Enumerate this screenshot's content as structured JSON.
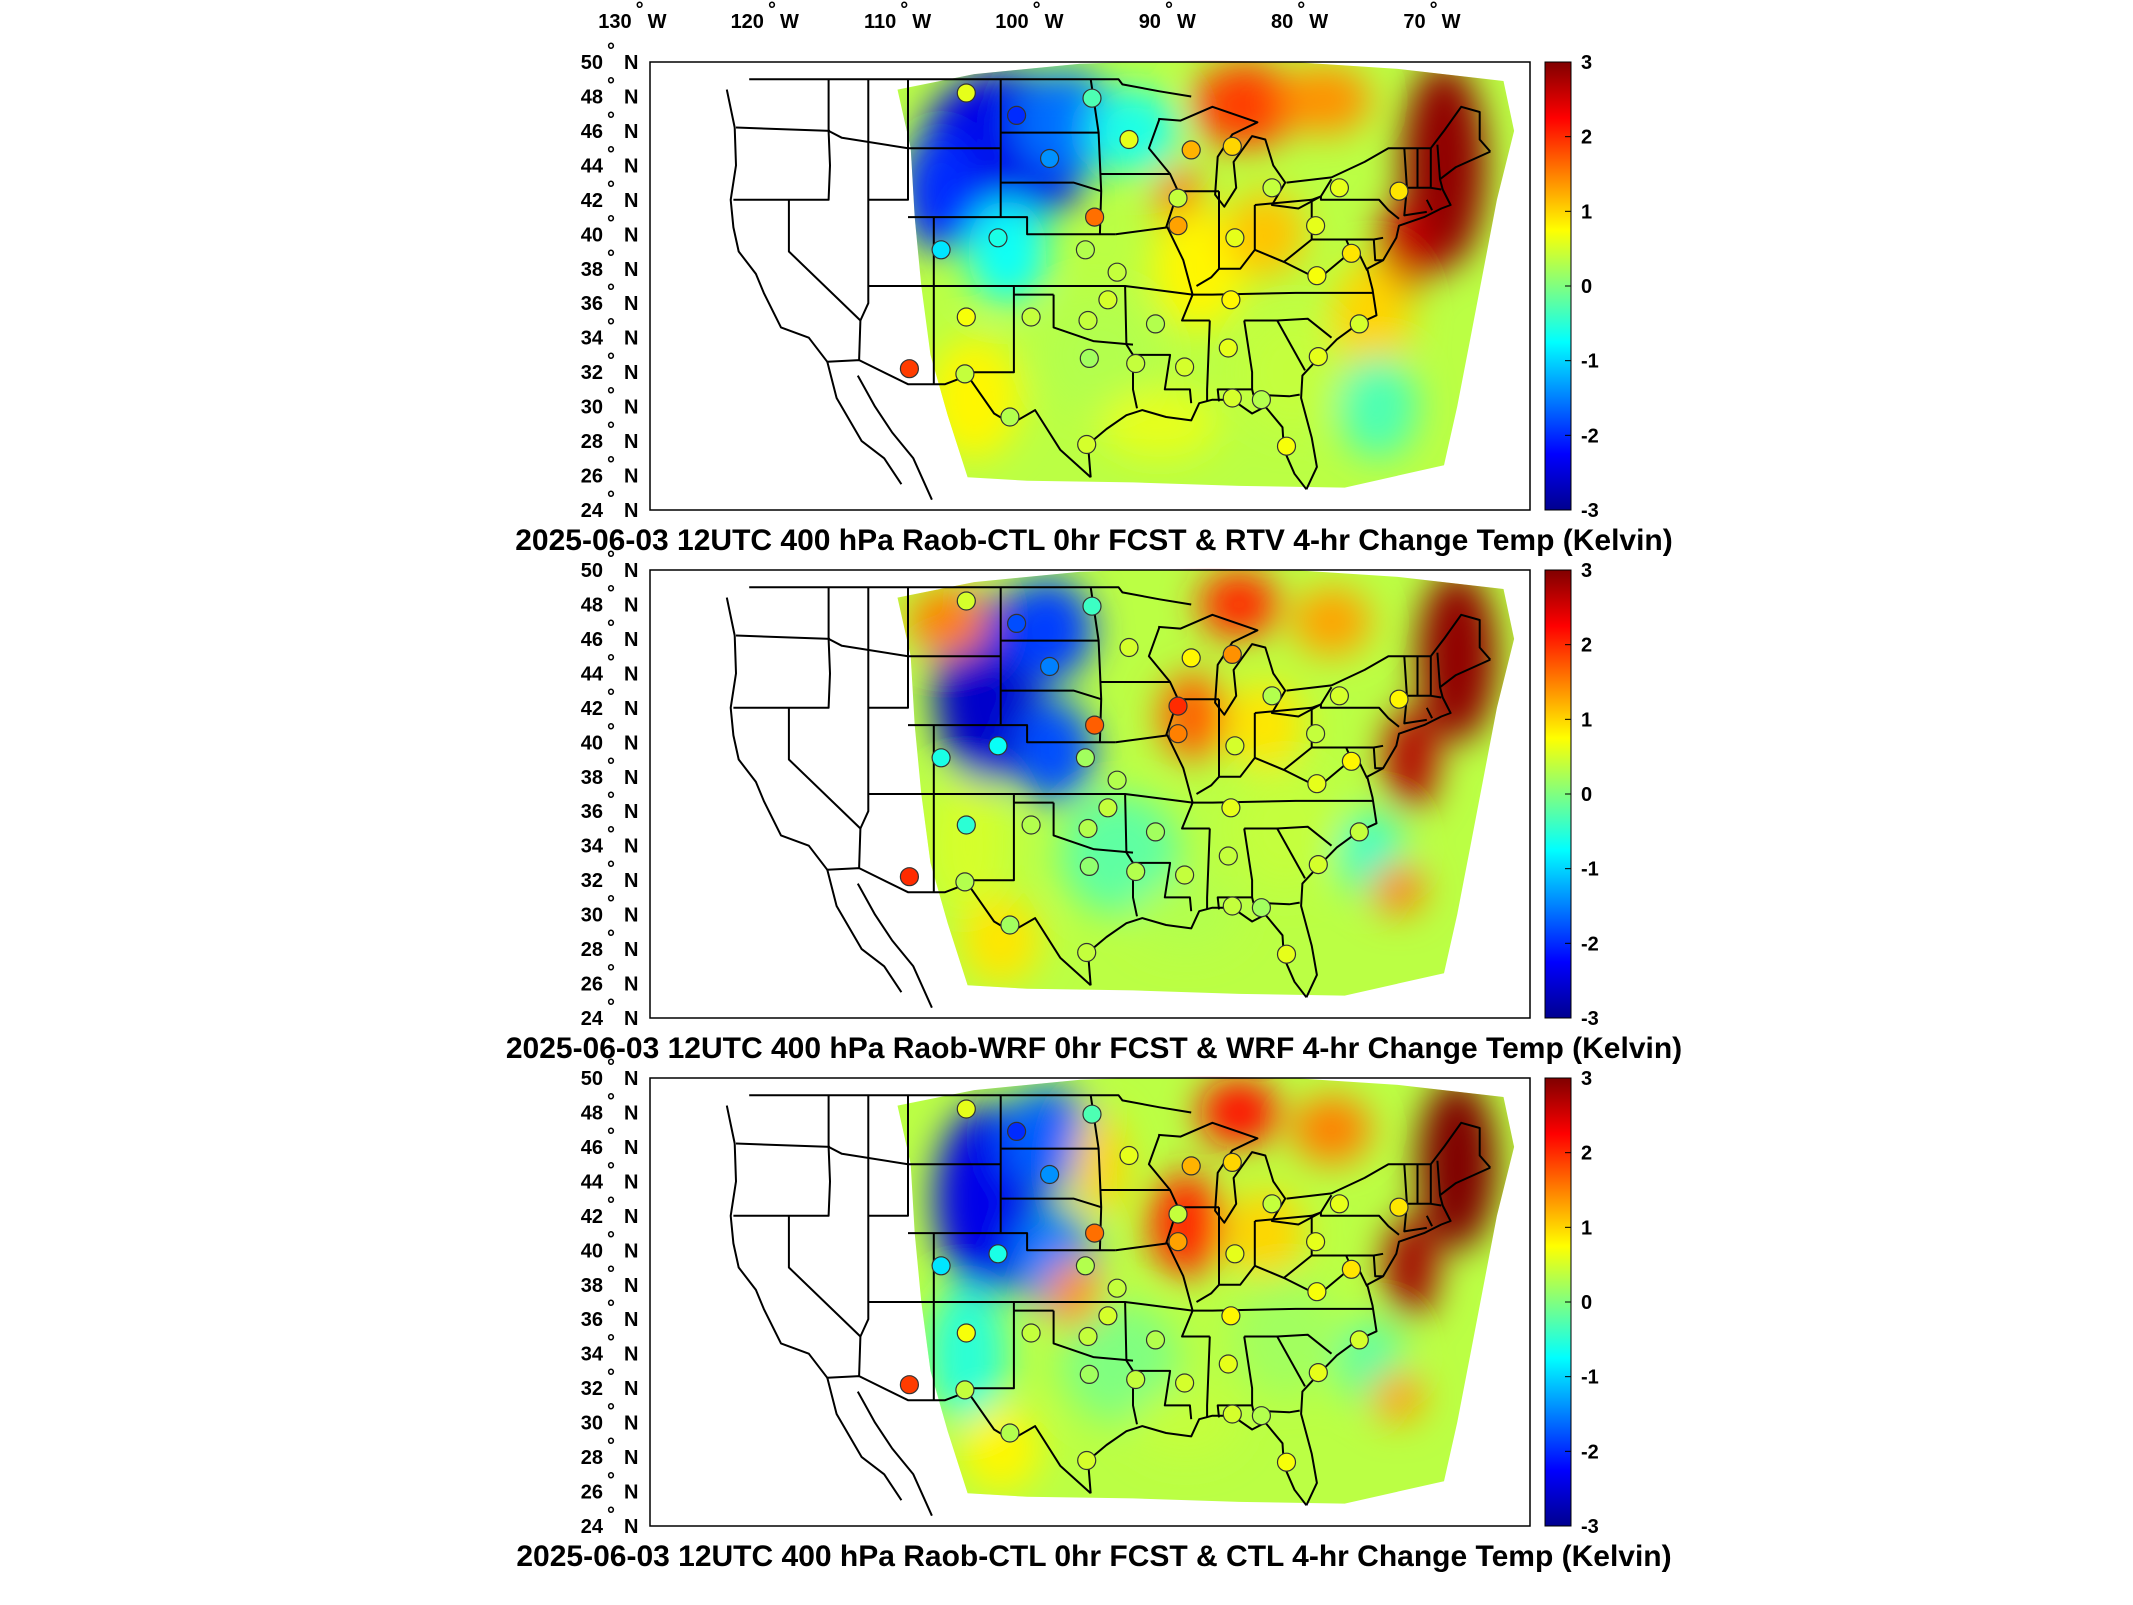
{
  "figure": {
    "lon_ticks": [
      {
        "deg": "130",
        "hemi": "W"
      },
      {
        "deg": "120",
        "hemi": "W"
      },
      {
        "deg": "110",
        "hemi": "W"
      },
      {
        "deg": "100",
        "hemi": "W"
      },
      {
        "deg": "90",
        "hemi": "W"
      },
      {
        "deg": "80",
        "hemi": "W"
      },
      {
        "deg": "70",
        "hemi": "W"
      }
    ],
    "lat_ticks": [
      {
        "deg": "50",
        "hemi": "N"
      },
      {
        "deg": "48",
        "hemi": "N"
      },
      {
        "deg": "46",
        "hemi": "N"
      },
      {
        "deg": "44",
        "hemi": "N"
      },
      {
        "deg": "42",
        "hemi": "N"
      },
      {
        "deg": "40",
        "hemi": "N"
      },
      {
        "deg": "38",
        "hemi": "N"
      },
      {
        "deg": "36",
        "hemi": "N"
      },
      {
        "deg": "34",
        "hemi": "N"
      },
      {
        "deg": "32",
        "hemi": "N"
      },
      {
        "deg": "30",
        "hemi": "N"
      },
      {
        "deg": "28",
        "hemi": "N"
      },
      {
        "deg": "26",
        "hemi": "N"
      },
      {
        "deg": "24",
        "hemi": "N"
      }
    ],
    "colorbar": {
      "min": -3,
      "max": 3,
      "ticks": [
        "3",
        "2",
        "1",
        "0",
        "-1",
        "-2",
        "-3"
      ],
      "colormap": [
        "#00008f",
        "#0000ff",
        "#0080ff",
        "#00ffff",
        "#80ff80",
        "#ffff00",
        "#ff8000",
        "#ff0000",
        "#800000"
      ]
    },
    "panels": [
      {
        "title": "2025-06-03 12UTC 400 hPa Raob-CTL 0hr FCST & RTV 4-hr Change Temp (Kelvin)",
        "stations": [
          {
            "lat": 48.2,
            "lon": -106.6,
            "value": 0.6
          },
          {
            "lat": 47.9,
            "lon": -97.1,
            "value": -0.3
          },
          {
            "lat": 46.9,
            "lon": -102.8,
            "value": -2.0
          },
          {
            "lat": 44.4,
            "lon": -100.3,
            "value": -1.4
          },
          {
            "lat": 42.1,
            "lon": -90.6,
            "value": 0.4
          },
          {
            "lat": 45.5,
            "lon": -94.3,
            "value": 0.6
          },
          {
            "lat": 44.9,
            "lon": -89.6,
            "value": 1.2
          },
          {
            "lat": 45.1,
            "lon": -86.5,
            "value": 1.0
          },
          {
            "lat": 42.7,
            "lon": -83.5,
            "value": 0.4
          },
          {
            "lat": 42.7,
            "lon": -78.4,
            "value": 0.6
          },
          {
            "lat": 42.5,
            "lon": -73.9,
            "value": 0.9
          },
          {
            "lat": 41.0,
            "lon": -96.9,
            "value": 1.6
          },
          {
            "lat": 40.5,
            "lon": -90.6,
            "value": 1.3
          },
          {
            "lat": 39.8,
            "lon": -86.3,
            "value": 0.6
          },
          {
            "lat": 40.5,
            "lon": -80.2,
            "value": 0.6
          },
          {
            "lat": 39.1,
            "lon": -108.5,
            "value": -0.9
          },
          {
            "lat": 39.8,
            "lon": -104.2,
            "value": -0.6
          },
          {
            "lat": 39.1,
            "lon": -97.6,
            "value": 0.3
          },
          {
            "lat": 37.8,
            "lon": -95.2,
            "value": 0.4
          },
          {
            "lat": 38.9,
            "lon": -77.5,
            "value": 0.9
          },
          {
            "lat": 37.6,
            "lon": -80.1,
            "value": 0.7
          },
          {
            "lat": 36.2,
            "lon": -95.9,
            "value": 0.5
          },
          {
            "lat": 36.2,
            "lon": -86.6,
            "value": 0.8
          },
          {
            "lat": 35.2,
            "lon": -101.7,
            "value": 0.4
          },
          {
            "lat": 35.2,
            "lon": -106.6,
            "value": 0.7
          },
          {
            "lat": 35.0,
            "lon": -97.4,
            "value": 0.4
          },
          {
            "lat": 34.8,
            "lon": -92.3,
            "value": 0.3
          },
          {
            "lat": 34.8,
            "lon": -76.9,
            "value": 0.5
          },
          {
            "lat": 32.8,
            "lon": -97.3,
            "value": 0.2
          },
          {
            "lat": 32.5,
            "lon": -93.8,
            "value": 0.4
          },
          {
            "lat": 32.3,
            "lon": -90.1,
            "value": 0.5
          },
          {
            "lat": 33.4,
            "lon": -86.8,
            "value": 0.6
          },
          {
            "lat": 32.9,
            "lon": -80.0,
            "value": 0.6
          },
          {
            "lat": 31.9,
            "lon": -106.7,
            "value": 0.4
          },
          {
            "lat": 32.2,
            "lon": -110.9,
            "value": 1.9
          },
          {
            "lat": 30.5,
            "lon": -86.5,
            "value": 0.5
          },
          {
            "lat": 30.4,
            "lon": -84.3,
            "value": 0.3
          },
          {
            "lat": 29.4,
            "lon": -103.3,
            "value": 0.3
          },
          {
            "lat": 27.8,
            "lon": -97.5,
            "value": 0.5
          },
          {
            "lat": 27.7,
            "lon": -82.4,
            "value": 0.7
          }
        ]
      },
      {
        "title": "2025-06-03 12UTC 400 hPa Raob-WRF 0hr FCST & WRF 4-hr Change Temp (Kelvin)",
        "stations": [
          {
            "lat": 48.2,
            "lon": -106.6,
            "value": 0.5
          },
          {
            "lat": 47.9,
            "lon": -97.1,
            "value": -0.4
          },
          {
            "lat": 46.9,
            "lon": -102.8,
            "value": -1.8
          },
          {
            "lat": 44.4,
            "lon": -100.3,
            "value": -1.5
          },
          {
            "lat": 42.1,
            "lon": -90.6,
            "value": 2.0
          },
          {
            "lat": 45.5,
            "lon": -94.3,
            "value": 0.5
          },
          {
            "lat": 44.9,
            "lon": -89.6,
            "value": 0.8
          },
          {
            "lat": 45.1,
            "lon": -86.5,
            "value": 1.4
          },
          {
            "lat": 42.7,
            "lon": -83.5,
            "value": 0.3
          },
          {
            "lat": 42.7,
            "lon": -78.4,
            "value": 0.5
          },
          {
            "lat": 42.5,
            "lon": -73.9,
            "value": 0.8
          },
          {
            "lat": 41.0,
            "lon": -96.9,
            "value": 1.7
          },
          {
            "lat": 40.5,
            "lon": -90.6,
            "value": 1.5
          },
          {
            "lat": 39.8,
            "lon": -86.3,
            "value": 0.5
          },
          {
            "lat": 40.5,
            "lon": -80.2,
            "value": 0.4
          },
          {
            "lat": 39.1,
            "lon": -108.5,
            "value": -0.6
          },
          {
            "lat": 39.8,
            "lon": -104.2,
            "value": -0.7
          },
          {
            "lat": 39.1,
            "lon": -97.6,
            "value": 0.2
          },
          {
            "lat": 37.8,
            "lon": -95.2,
            "value": 0.3
          },
          {
            "lat": 38.9,
            "lon": -77.5,
            "value": 0.8
          },
          {
            "lat": 37.6,
            "lon": -80.1,
            "value": 0.6
          },
          {
            "lat": 36.2,
            "lon": -95.9,
            "value": 0.4
          },
          {
            "lat": 36.2,
            "lon": -86.6,
            "value": 0.6
          },
          {
            "lat": 35.2,
            "lon": -101.7,
            "value": 0.3
          },
          {
            "lat": 35.2,
            "lon": -106.6,
            "value": -0.5
          },
          {
            "lat": 35.0,
            "lon": -97.4,
            "value": 0.3
          },
          {
            "lat": 34.8,
            "lon": -92.3,
            "value": 0.2
          },
          {
            "lat": 34.8,
            "lon": -76.9,
            "value": 0.4
          },
          {
            "lat": 32.8,
            "lon": -97.3,
            "value": 0.1
          },
          {
            "lat": 32.5,
            "lon": -93.8,
            "value": 0.3
          },
          {
            "lat": 32.3,
            "lon": -90.1,
            "value": 0.4
          },
          {
            "lat": 33.4,
            "lon": -86.8,
            "value": 0.4
          },
          {
            "lat": 32.9,
            "lon": -80.0,
            "value": 0.5
          },
          {
            "lat": 31.9,
            "lon": -106.7,
            "value": 0.3
          },
          {
            "lat": 32.2,
            "lon": -110.9,
            "value": 2.0
          },
          {
            "lat": 30.5,
            "lon": -86.5,
            "value": 0.4
          },
          {
            "lat": 30.4,
            "lon": -84.3,
            "value": 0.2
          },
          {
            "lat": 29.4,
            "lon": -103.3,
            "value": 0.2
          },
          {
            "lat": 27.8,
            "lon": -97.5,
            "value": 0.4
          },
          {
            "lat": 27.7,
            "lon": -82.4,
            "value": 0.6
          }
        ]
      },
      {
        "title": "2025-06-03 12UTC 400 hPa Raob-CTL 0hr FCST & CTL 4-hr Change Temp (Kelvin)",
        "stations": [
          {
            "lat": 48.2,
            "lon": -106.6,
            "value": 0.6
          },
          {
            "lat": 47.9,
            "lon": -97.1,
            "value": -0.3
          },
          {
            "lat": 46.9,
            "lon": -102.8,
            "value": -2.0
          },
          {
            "lat": 44.4,
            "lon": -100.3,
            "value": -1.4
          },
          {
            "lat": 42.1,
            "lon": -90.6,
            "value": 0.4
          },
          {
            "lat": 45.5,
            "lon": -94.3,
            "value": 0.6
          },
          {
            "lat": 44.9,
            "lon": -89.6,
            "value": 1.2
          },
          {
            "lat": 45.1,
            "lon": -86.5,
            "value": 1.0
          },
          {
            "lat": 42.7,
            "lon": -83.5,
            "value": 0.4
          },
          {
            "lat": 42.7,
            "lon": -78.4,
            "value": 0.6
          },
          {
            "lat": 42.5,
            "lon": -73.9,
            "value": 0.9
          },
          {
            "lat": 41.0,
            "lon": -96.9,
            "value": 1.6
          },
          {
            "lat": 40.5,
            "lon": -90.6,
            "value": 1.3
          },
          {
            "lat": 39.8,
            "lon": -86.3,
            "value": 0.6
          },
          {
            "lat": 40.5,
            "lon": -80.2,
            "value": 0.6
          },
          {
            "lat": 39.1,
            "lon": -108.5,
            "value": -0.9
          },
          {
            "lat": 39.8,
            "lon": -104.2,
            "value": -0.6
          },
          {
            "lat": 39.1,
            "lon": -97.6,
            "value": 0.3
          },
          {
            "lat": 37.8,
            "lon": -95.2,
            "value": 0.4
          },
          {
            "lat": 38.9,
            "lon": -77.5,
            "value": 0.9
          },
          {
            "lat": 37.6,
            "lon": -80.1,
            "value": 0.7
          },
          {
            "lat": 36.2,
            "lon": -95.9,
            "value": 0.5
          },
          {
            "lat": 36.2,
            "lon": -86.6,
            "value": 0.8
          },
          {
            "lat": 35.2,
            "lon": -101.7,
            "value": 0.4
          },
          {
            "lat": 35.2,
            "lon": -106.6,
            "value": 0.7
          },
          {
            "lat": 35.0,
            "lon": -97.4,
            "value": 0.4
          },
          {
            "lat": 34.8,
            "lon": -92.3,
            "value": 0.3
          },
          {
            "lat": 34.8,
            "lon": -76.9,
            "value": 0.5
          },
          {
            "lat": 32.8,
            "lon": -97.3,
            "value": 0.2
          },
          {
            "lat": 32.5,
            "lon": -93.8,
            "value": 0.4
          },
          {
            "lat": 32.3,
            "lon": -90.1,
            "value": 0.5
          },
          {
            "lat": 33.4,
            "lon": -86.8,
            "value": 0.6
          },
          {
            "lat": 32.9,
            "lon": -80.0,
            "value": 0.6
          },
          {
            "lat": 31.9,
            "lon": -106.7,
            "value": 0.4
          },
          {
            "lat": 32.2,
            "lon": -110.9,
            "value": 1.9
          },
          {
            "lat": 30.5,
            "lon": -86.5,
            "value": 0.5
          },
          {
            "lat": 30.4,
            "lon": -84.3,
            "value": 0.3
          },
          {
            "lat": 29.4,
            "lon": -103.3,
            "value": 0.3
          },
          {
            "lat": 27.8,
            "lon": -97.5,
            "value": 0.5
          },
          {
            "lat": 27.7,
            "lon": -82.4,
            "value": 0.7
          }
        ]
      }
    ]
  }
}
